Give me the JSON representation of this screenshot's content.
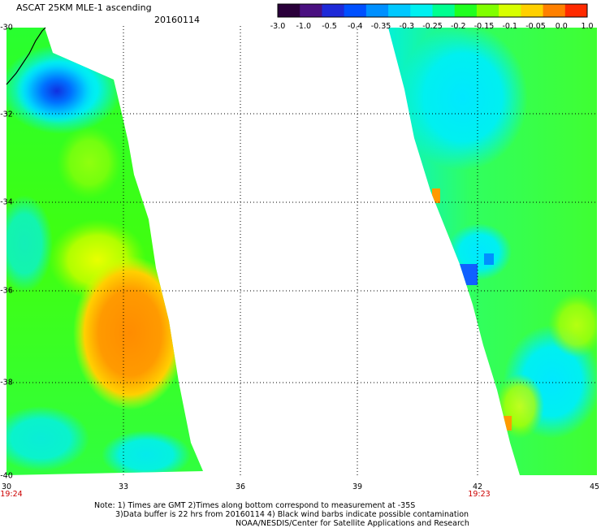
{
  "header": {
    "title": "ASCAT 25KM MLE-1 ascending",
    "date": "20160114"
  },
  "colorbar": {
    "labels": [
      "-3.0",
      "-1.0",
      "-0.5",
      "-0.4",
      "-0.35",
      "-0.3",
      "-0.25",
      "-0.2",
      "-0.15",
      "-0.1",
      "-0.05",
      "0.0",
      "1.0"
    ],
    "colors": [
      "#2a003a",
      "#4a1080",
      "#1e2ad8",
      "#0050ff",
      "#0090ff",
      "#00c8ff",
      "#00f0f0",
      "#00ff90",
      "#20ff20",
      "#80ff00",
      "#d8ff00",
      "#ffd000",
      "#ff8000",
      "#ff2a00"
    ]
  },
  "map": {
    "lon_labels": [
      "30",
      "33",
      "36",
      "39",
      "42",
      "45"
    ],
    "lat_labels": [
      "-30",
      "-32",
      "-34",
      "-36",
      "-38",
      "-40"
    ],
    "lon_range": [
      30,
      45
    ],
    "lat_range": [
      -40,
      -30
    ],
    "times": [
      {
        "lon": "30",
        "time": "19:24"
      },
      {
        "lon": "42",
        "time": "19:23"
      }
    ]
  },
  "footer": {
    "line1": "Note: 1) Times are GMT 2)Times along bottom correspond to measurement at -35S",
    "line2": "3)Data buffer is 22 hrs from 20160114 4) Black wind barbs indicate possible contamination",
    "line3": "NOAA/NESDIS/Center for Satellite Applications and Research"
  }
}
